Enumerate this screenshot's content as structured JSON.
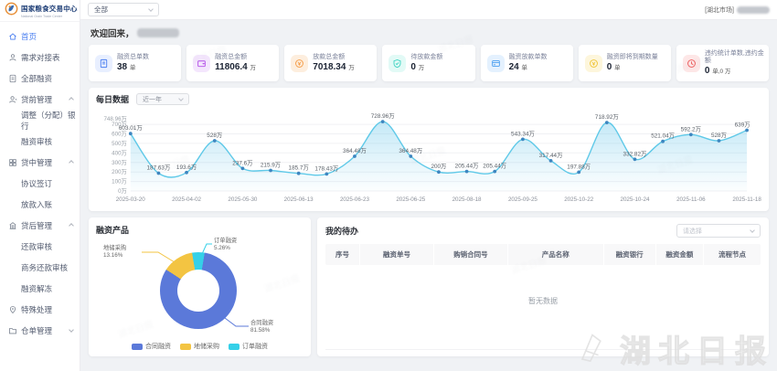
{
  "header": {
    "logo_title": "国家粮食交易中心",
    "logo_subtitle": "National Grain Trade Center",
    "filter_value": "全部",
    "market_tag": "[湖北市场]"
  },
  "welcome": {
    "text": "欢迎回来，"
  },
  "sidebar": {
    "items": [
      {
        "label": "首页",
        "icon": "home-icon",
        "level": 1,
        "active": true
      },
      {
        "label": "需求对接表",
        "icon": "user-icon",
        "level": 1
      },
      {
        "label": "全部融资",
        "icon": "file-icon",
        "level": 1
      },
      {
        "label": "贷前管理",
        "icon": "user-gear-icon",
        "level": 1,
        "group": true,
        "expanded": true
      },
      {
        "label": "调整（分配）银行",
        "level": 2
      },
      {
        "label": "融资审核",
        "level": 2
      },
      {
        "label": "贷中管理",
        "icon": "grid-icon",
        "level": 1,
        "group": true,
        "expanded": true
      },
      {
        "label": "协议签订",
        "level": 2
      },
      {
        "label": "放款入账",
        "level": 2
      },
      {
        "label": "贷后管理",
        "icon": "building-icon",
        "level": 1,
        "group": true,
        "expanded": true
      },
      {
        "label": "还款审核",
        "level": 2
      },
      {
        "label": "商务还款审核",
        "level": 2
      },
      {
        "label": "融资解冻",
        "level": 2
      },
      {
        "label": "特殊处理",
        "icon": "pin-icon",
        "level": 1
      },
      {
        "label": "仓单管理",
        "icon": "folder-icon",
        "level": 1,
        "group": true,
        "expanded": false
      }
    ]
  },
  "stats": {
    "cards": [
      {
        "title": "融资总单数",
        "value": "38",
        "unit": "单",
        "icon": "file-icon",
        "color": "#4a7ff0",
        "bg": "#e8efff"
      },
      {
        "title": "融资总金额",
        "value": "11806.4",
        "unit": "万",
        "icon": "wallet-icon",
        "color": "#b44fe8",
        "bg": "#f4e6fd"
      },
      {
        "title": "放款总金额",
        "value": "7018.34",
        "unit": "万",
        "icon": "coin-icon",
        "color": "#f59b45",
        "bg": "#fdeede"
      },
      {
        "title": "待放款金额",
        "value": "0",
        "unit": "万",
        "icon": "shield-icon",
        "color": "#3fd4c2",
        "bg": "#e2faf6"
      },
      {
        "title": "融资放款单数",
        "value": "24",
        "unit": "单",
        "icon": "card-icon",
        "color": "#4a9ff0",
        "bg": "#e4f1fe"
      },
      {
        "title": "融资即将到期数量",
        "value": "0",
        "unit": "单",
        "icon": "coin-icon",
        "color": "#f0c435",
        "bg": "#fdf6dc"
      },
      {
        "title": "违约统计单数,违约金额",
        "value": "0",
        "unit": "单,0 万",
        "icon": "clock-icon",
        "color": "#ee5b5b",
        "bg": "#fde7e7"
      }
    ]
  },
  "daily_panel": {
    "title": "每日数据",
    "range_value": "近一年"
  },
  "product_panel": {
    "title": "融资产品"
  },
  "todo": {
    "title": "我的待办",
    "select_placeholder": "请选择",
    "columns": [
      "序号",
      "融资单号",
      "购销合同号",
      "产品名称",
      "融资银行",
      "融资金额",
      "流程节点"
    ],
    "empty_text": "暂无数据"
  },
  "chart_data": [
    {
      "type": "line",
      "title": "每日数据",
      "x_ticks": [
        "2025-03-20",
        "2025-04-02",
        "2025-05-30",
        "2025-06-13",
        "2025-06-23",
        "2025-06-25",
        "2025-08-18",
        "2025-09-25",
        "2025-10-22",
        "2025-10-24",
        "2025-11-06",
        "2025-11-18"
      ],
      "values": [
        603.01,
        187.63,
        193.6,
        528,
        237.6,
        215.9,
        185.7,
        178.43,
        364.48,
        728.96,
        364.48,
        200,
        205.44,
        205.44,
        543.34,
        317.44,
        197.88,
        718.92,
        332.82,
        521.04,
        592.2,
        528,
        639
      ],
      "unit": "万",
      "ylim": [
        0,
        748.96
      ],
      "y_ticks": [
        "0万",
        "100万",
        "200万",
        "300万",
        "400万",
        "500万",
        "600万",
        "700万"
      ],
      "y_max_label": "748.96万",
      "line_color": "#5fc9e8",
      "point_color": "#3e86c0",
      "grid": true
    },
    {
      "type": "pie",
      "title": "融资产品",
      "slices": [
        {
          "name": "合同融资",
          "pct": 81.58,
          "color": "#5b79d9"
        },
        {
          "name": "地储采购",
          "pct": 13.16,
          "color": "#f3c442"
        },
        {
          "name": "订单融资",
          "pct": 5.26,
          "color": "#35d0e8"
        }
      ],
      "legend_position": "bottom"
    }
  ],
  "watermark": {
    "text": "湖北日报"
  }
}
